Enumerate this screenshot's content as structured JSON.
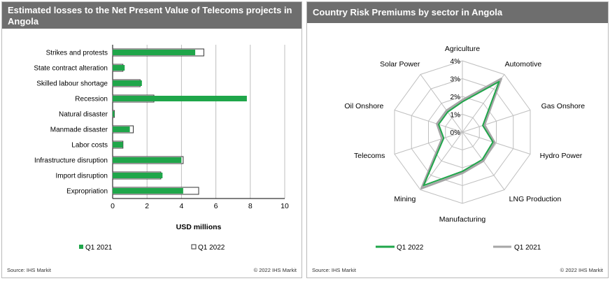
{
  "left_panel": {
    "title": "Estimated losses  to the Net Present Value of Telecoms projects in Angola",
    "source": "Source:  IHS Markit",
    "copyright": "© 2022  IHS Markit"
  },
  "right_panel": {
    "title": "Country  Risk  Premiums by sector  in Angola",
    "source": "Source:  IHS Markit",
    "copyright": "© 2022  IHS Markit"
  },
  "colors": {
    "q1_2021_bar": "#1fa64a",
    "q1_2022_bar": "#ffffff",
    "q1_2022_line": "#1fa64a",
    "q1_2021_line": "#a6a6a6"
  },
  "chart_data": [
    {
      "type": "bar",
      "orientation": "horizontal",
      "title": "Estimated losses  to the Net Present Value of Telecoms projects in Angola",
      "categories": [
        "Strikes and protests",
        "State contract alteration",
        "Skilled labour shortage",
        "Recession",
        "Natural disaster",
        "Manmade disaster",
        "Labor costs",
        "Infrastructure disruption",
        "Import disruption",
        "Expropriation"
      ],
      "series": [
        {
          "name": "Q1 2021",
          "values": [
            4.8,
            0.7,
            1.7,
            7.8,
            0.1,
            1.0,
            0.6,
            4.0,
            2.9,
            4.1
          ]
        },
        {
          "name": "Q1 2022",
          "values": [
            5.3,
            0.6,
            1.6,
            2.4,
            0.1,
            1.2,
            0.6,
            4.1,
            2.8,
            5.0
          ]
        }
      ],
      "xlabel": "USD millions",
      "xlim": [
        0,
        10
      ],
      "xticks": [
        "0",
        "2",
        "4",
        "6",
        "8",
        "10"
      ],
      "legend": [
        "Q1 2021",
        "Q1 2022"
      ],
      "legend_position": "bottom"
    },
    {
      "type": "radar",
      "title": "Country  Risk  Premiums by sector  in Angola",
      "categories": [
        "Agriculture",
        "Automotive",
        "Gas Onshore",
        "Hydro Power",
        "LNG Production",
        "Manufacturing",
        "Mining",
        "Telecoms",
        "Oil Onshore",
        "Solar Power"
      ],
      "series": [
        {
          "name": "Q1 2022",
          "values": [
            1.7,
            3.5,
            1.2,
            1.8,
            1.9,
            2.2,
            3.7,
            1.1,
            1.4,
            1.4
          ]
        },
        {
          "name": "Q1 2021",
          "values": [
            1.8,
            3.7,
            1.3,
            1.9,
            2.0,
            2.3,
            3.9,
            1.2,
            1.5,
            1.5
          ]
        }
      ],
      "rlim": [
        0,
        4
      ],
      "rticks": [
        "0%",
        "1%",
        "2%",
        "3%",
        "4%"
      ],
      "legend": [
        "Q1 2022",
        "Q1 2021"
      ],
      "legend_position": "bottom"
    }
  ]
}
